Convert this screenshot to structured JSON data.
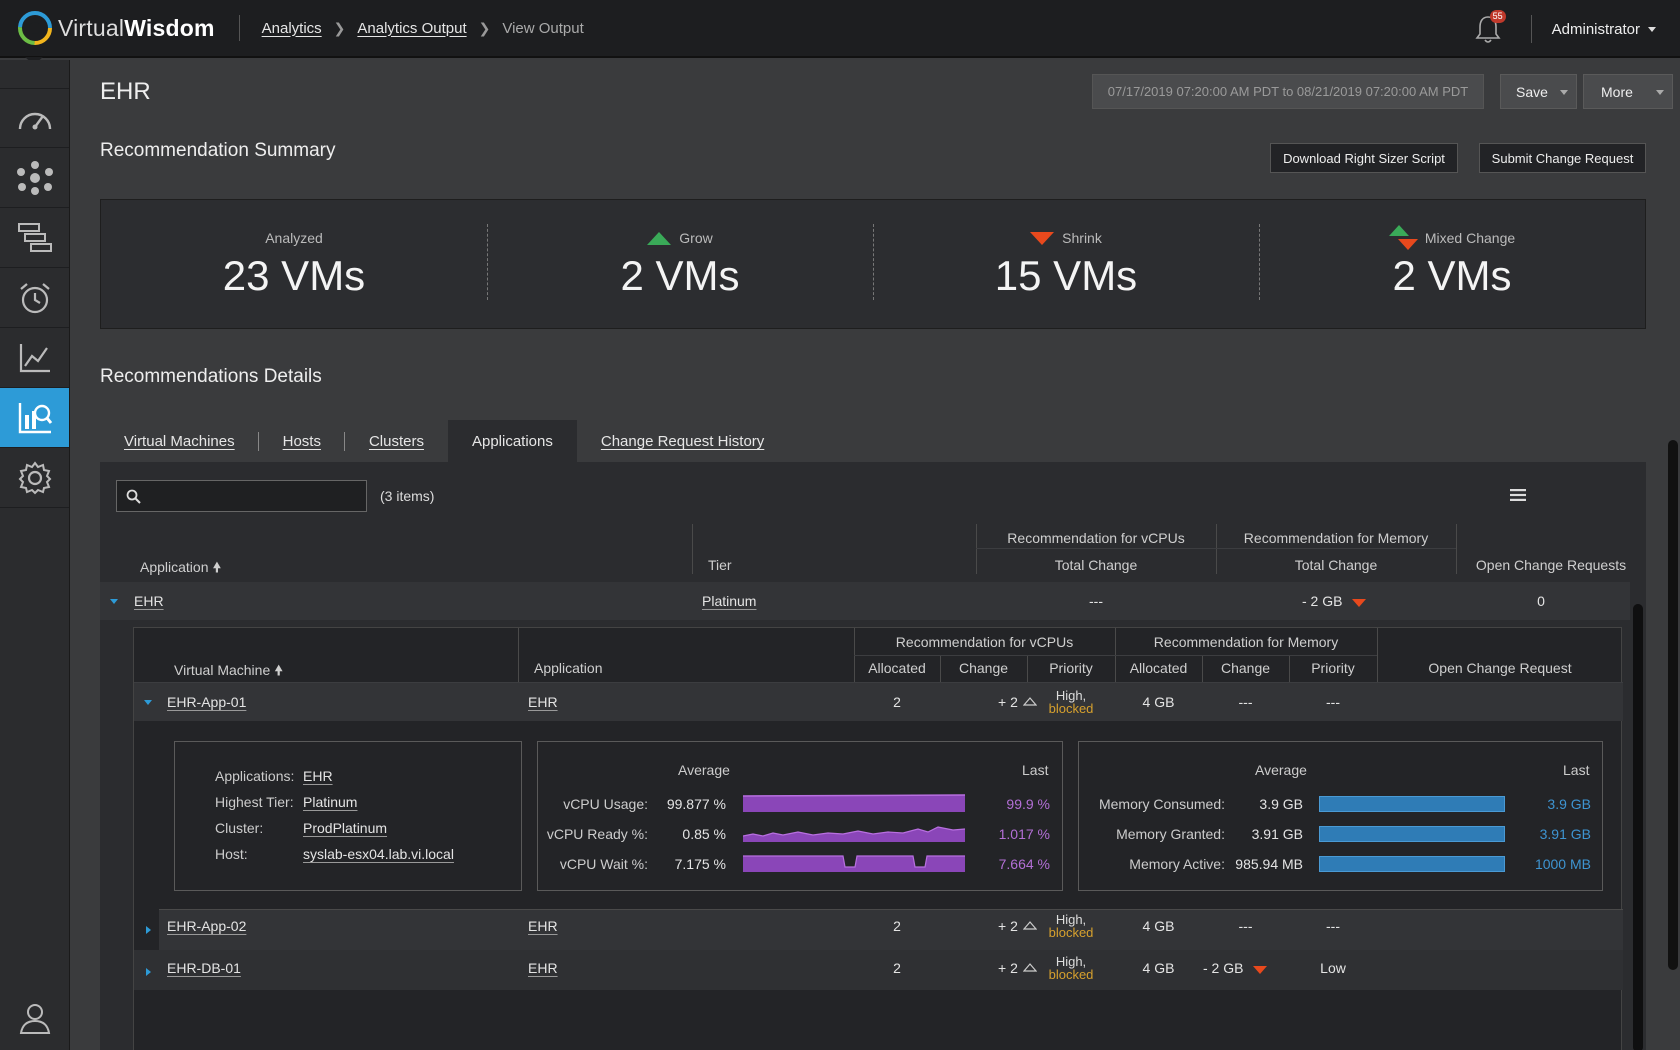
{
  "app": {
    "name_light": "Virtual",
    "name_bold": "Wisdom"
  },
  "breadcrumb": {
    "items": [
      "Analytics",
      "Analytics Output"
    ],
    "current": "View Output"
  },
  "notifications": {
    "count": "55"
  },
  "user": {
    "name": "Administrator"
  },
  "sidebar": {
    "items": [
      "dashboard",
      "topology",
      "inventory",
      "alarms",
      "reports",
      "analytics",
      "settings"
    ],
    "active": "analytics",
    "accent": "#2d9bd7"
  },
  "page": {
    "title": "EHR",
    "date_range": "07/17/2019 07:20:00 AM PDT to 08/21/2019 07:20:00 AM PDT",
    "save_label": "Save",
    "more_label": "More"
  },
  "summary": {
    "title": "Recommendation Summary",
    "download_label": "Download Right Sizer Script",
    "submit_label": "Submit Change Request",
    "analyzed": {
      "label": "Analyzed",
      "value": "23 VMs"
    },
    "grow": {
      "label": "Grow",
      "value": "2 VMs",
      "color": "#3aaa58"
    },
    "shrink": {
      "label": "Shrink",
      "value": "15 VMs",
      "color": "#e8491d"
    },
    "mixed": {
      "label": "Mixed Change",
      "value": "2 VMs"
    }
  },
  "details": {
    "title": "Recommendations Details",
    "tabs": [
      "Virtual Machines",
      "Hosts",
      "Clusters",
      "Applications",
      "Change Request History"
    ],
    "active_tab": "Applications",
    "item_count": "(3 items)",
    "columns": {
      "application": "Application",
      "tier": "Tier",
      "vcpu_group": "Recommendation for vCPUs",
      "mem_group": "Recommendation for Memory",
      "total_change": "Total Change",
      "open_cr": "Open Change Requests"
    },
    "app_row": {
      "name": "EHR",
      "tier": "Platinum",
      "vcpu_change": "---",
      "mem_change": "- 2 GB",
      "open": "0"
    },
    "vm_columns": {
      "vm": "Virtual Machine",
      "application": "Application",
      "vcpu_group": "Recommendation for vCPUs",
      "mem_group": "Recommendation for Memory",
      "allocated": "Allocated",
      "change": "Change",
      "priority": "Priority",
      "open_cr": "Open Change Request"
    },
    "vms": [
      {
        "name": "EHR-App-01",
        "app": "EHR",
        "cpu_alloc": "2",
        "cpu_change": "+ 2",
        "prio_a": "High,",
        "prio_b": "blocked",
        "mem_alloc": "4 GB",
        "mem_change": "---",
        "mem_prio": "---"
      },
      {
        "name": "EHR-App-02",
        "app": "EHR",
        "cpu_alloc": "2",
        "cpu_change": "+ 2",
        "prio_a": "High,",
        "prio_b": "blocked",
        "mem_alloc": "4 GB",
        "mem_change": "---",
        "mem_prio": "---"
      },
      {
        "name": "EHR-DB-01",
        "app": "EHR",
        "cpu_alloc": "2",
        "cpu_change": "+ 2",
        "prio_a": "High,",
        "prio_b": "blocked",
        "mem_alloc": "4 GB",
        "mem_change": "- 2 GB",
        "mem_prio": "Low"
      }
    ],
    "vm_detail": {
      "applications_label": "Applications:",
      "applications": "EHR",
      "tier_label": "Highest Tier:",
      "tier": "Platinum",
      "cluster_label": "Cluster:",
      "cluster": "ProdPlatinum",
      "host_label": "Host:",
      "host": "syslab-esx04.lab.vi.local",
      "avg_label": "Average",
      "last_label": "Last",
      "cpu": [
        {
          "label": "vCPU Usage:",
          "avg": "99.877 %",
          "last": "99.9 %"
        },
        {
          "label": "vCPU Ready %:",
          "avg": "0.85 %",
          "last": "1.017 %"
        },
        {
          "label": "vCPU Wait %:",
          "avg": "7.175 %",
          "last": "7.664 %"
        }
      ],
      "mem": [
        {
          "label": "Memory Consumed:",
          "avg": "3.9 GB",
          "last": "3.9 GB"
        },
        {
          "label": "Memory Granted:",
          "avg": "3.91 GB",
          "last": "3.91 GB"
        },
        {
          "label": "Memory Active:",
          "avg": "985.94 MB",
          "last": "1000 MB"
        }
      ]
    }
  }
}
